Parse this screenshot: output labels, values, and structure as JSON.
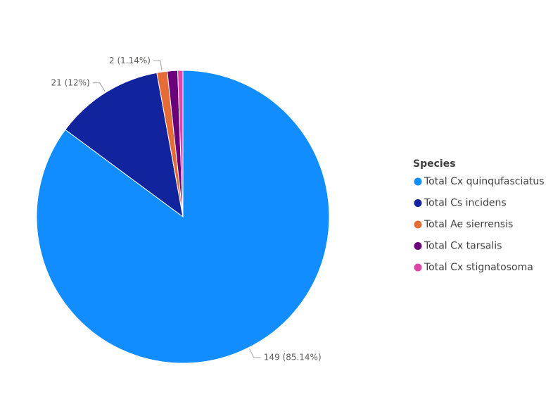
{
  "chart_data": {
    "type": "pie",
    "legend_title": "Species",
    "legend_position": "right",
    "categories": [
      "Total Cx quinqufasciatus",
      "Total Cs incidens",
      "Total Ae sierrensis",
      "Total Cx tarsalis",
      "Total Cx stignatosoma"
    ],
    "values": [
      149,
      21,
      2,
      2,
      1
    ],
    "value_labels": [
      "149 (85.14%)",
      "21 (12%)",
      "2 (1.14%)",
      null,
      null
    ],
    "colors": [
      "#118DFF",
      "#12239E",
      "#E66C37",
      "#6B007B",
      "#E044A7"
    ]
  }
}
